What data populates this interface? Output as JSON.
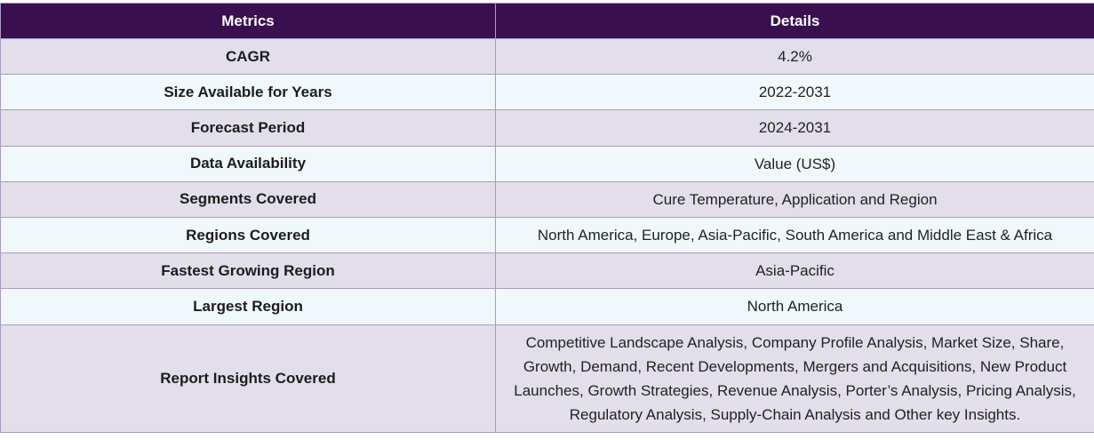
{
  "table": {
    "headers": [
      "Metrics",
      "Details"
    ],
    "rows": [
      {
        "metric": "CAGR",
        "detail": "4.2%"
      },
      {
        "metric": "Size Available for Years",
        "detail": "2022-2031"
      },
      {
        "metric": "Forecast Period",
        "detail": "2024-2031"
      },
      {
        "metric": "Data Availability",
        "detail": "Value (US$)"
      },
      {
        "metric": "Segments Covered",
        "detail": "Cure Temperature, Application and Region"
      },
      {
        "metric": "Regions Covered",
        "detail": "North America, Europe, Asia-Pacific, South America and Middle East & Africa"
      },
      {
        "metric": "Fastest Growing Region",
        "detail": "Asia-Pacific"
      },
      {
        "metric": "Largest Region",
        "detail": "North America"
      },
      {
        "metric": "Report Insights Covered",
        "detail": "Competitive Landscape Analysis, Company Profile Analysis, Market Size, Share, Growth, Demand, Recent Developments, Mergers and Acquisitions, New Product Launches, Growth Strategies, Revenue Analysis, Porter’s Analysis, Pricing Analysis, Regulatory Analysis, Supply-Chain Analysis and Other key Insights."
      }
    ]
  },
  "colors": {
    "header_bg": "#3a0f4f",
    "row_shade": "#e2deea",
    "row_light": "#f1f8fc",
    "border": "#a99bc4"
  }
}
